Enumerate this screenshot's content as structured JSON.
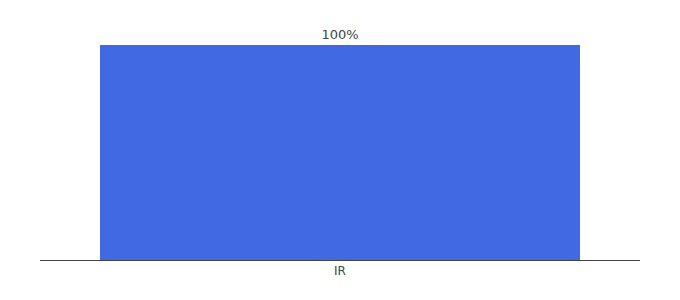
{
  "chart_data": {
    "type": "bar",
    "categories": [
      "IR"
    ],
    "values": [
      100
    ],
    "value_labels": [
      "100%"
    ],
    "data_labels": true,
    "color": "#4169E1",
    "ylim": [
      0,
      100
    ],
    "grid": false,
    "tick_labels": "x"
  }
}
